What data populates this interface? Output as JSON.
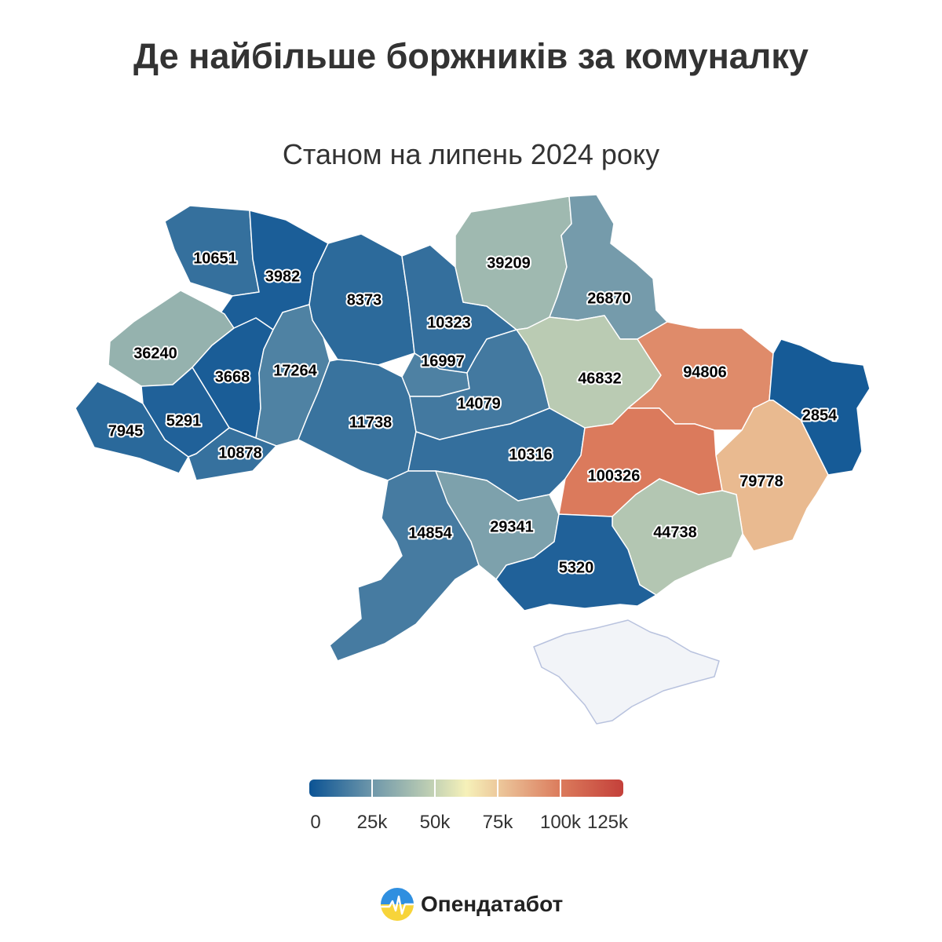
{
  "header": {
    "title": "Де найбільше боржників за комуналку",
    "subtitle": "Станом на липень 2024 року"
  },
  "legend": {
    "labels": [
      "0",
      "25k",
      "50k",
      "75k",
      "100k",
      "125k"
    ],
    "min": 0,
    "max": 125000,
    "colors": [
      "#0b5394",
      "#6e97aa",
      "#c5d3b4",
      "#f6f1b9",
      "#e8b58d",
      "#db7b5c",
      "#c4403a"
    ]
  },
  "regions": [
    {
      "id": "volyn",
      "value": 10651,
      "label": "10651"
    },
    {
      "id": "rivne",
      "value": 3982,
      "label": "3982"
    },
    {
      "id": "zhytomyr",
      "value": 8373,
      "label": "8373"
    },
    {
      "id": "kyiv",
      "value": 10323,
      "label": "10323"
    },
    {
      "id": "chernihiv",
      "value": 39209,
      "label": "39209"
    },
    {
      "id": "sumy",
      "value": 26870,
      "label": "26870"
    },
    {
      "id": "lviv",
      "value": 36240,
      "label": "36240"
    },
    {
      "id": "ternopil",
      "value": 3668,
      "label": "3668"
    },
    {
      "id": "khmelnytskyi",
      "value": 17264,
      "label": "17264"
    },
    {
      "id": "kyiv-city",
      "value": 16997,
      "label": "16997"
    },
    {
      "id": "poltava",
      "value": 46832,
      "label": "46832"
    },
    {
      "id": "kharkiv",
      "value": 94806,
      "label": "94806"
    },
    {
      "id": "luhansk",
      "value": 2854,
      "label": "2854"
    },
    {
      "id": "zakarpattia",
      "value": 7945,
      "label": "7945"
    },
    {
      "id": "ivano-frankivsk",
      "value": 5291,
      "label": "5291"
    },
    {
      "id": "chernivtsi",
      "value": 10878,
      "label": "10878"
    },
    {
      "id": "vinnytsia",
      "value": 11738,
      "label": "11738"
    },
    {
      "id": "cherkasy",
      "value": 14079,
      "label": "14079"
    },
    {
      "id": "kirovohrad",
      "value": 10316,
      "label": "10316"
    },
    {
      "id": "dnipropetrovsk",
      "value": 100326,
      "label": "100326"
    },
    {
      "id": "donetsk",
      "value": 79778,
      "label": "79778"
    },
    {
      "id": "odesa",
      "value": 14854,
      "label": "14854"
    },
    {
      "id": "mykolaiv",
      "value": 29341,
      "label": "29341"
    },
    {
      "id": "zaporizhzhia",
      "value": 44738,
      "label": "44738"
    },
    {
      "id": "kherson",
      "value": 5320,
      "label": "5320"
    },
    {
      "id": "crimea",
      "value": null,
      "label": ""
    }
  ],
  "brand": {
    "name": "Опендатабот"
  }
}
